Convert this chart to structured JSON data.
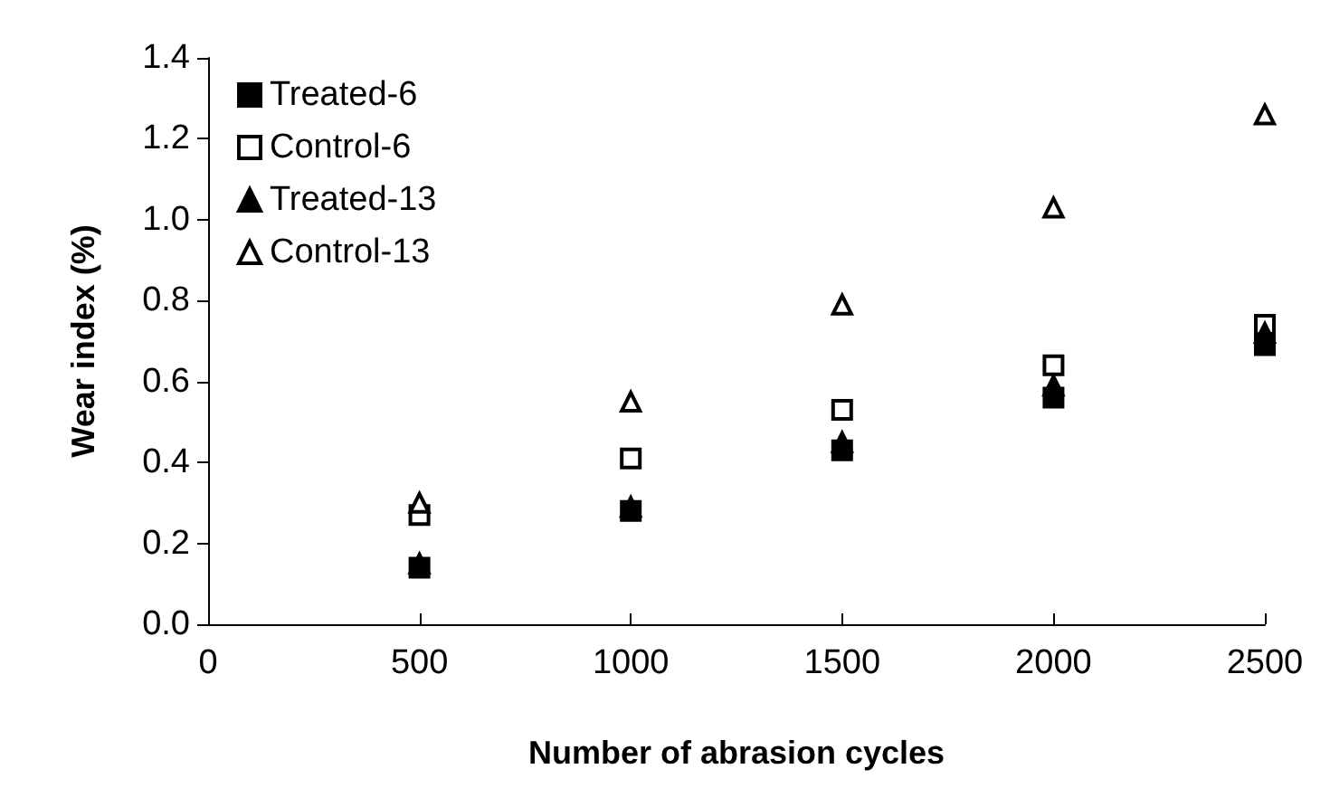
{
  "chart_data": {
    "type": "scatter",
    "xlabel": "Number of abrasion cycles",
    "ylabel": "Wear index (%)",
    "x": [
      500,
      1000,
      1500,
      2000,
      2500
    ],
    "series": [
      {
        "name": "Treated-6",
        "color": "#000000",
        "marker": "square",
        "values": [
          0.14,
          0.28,
          0.43,
          0.56,
          0.69
        ]
      },
      {
        "name": "Control-6",
        "color": "#ffffff",
        "marker": "square",
        "values": [
          0.27,
          0.41,
          0.53,
          0.64,
          0.74
        ]
      },
      {
        "name": "Treated-13",
        "color": "#000000",
        "marker": "triangle",
        "values": [
          0.15,
          0.29,
          0.45,
          0.59,
          0.72
        ]
      },
      {
        "name": "Control-13",
        "color": "#ffffff",
        "marker": "triangle",
        "values": [
          0.3,
          0.55,
          0.79,
          1.03,
          1.26
        ]
      }
    ],
    "xlim": [
      0,
      2500
    ],
    "xticks": [
      0,
      500,
      1000,
      1500,
      2000,
      2500
    ],
    "ylim": [
      0,
      1.4
    ],
    "yticks": [
      {
        "value": 0,
        "label": "0.0"
      },
      0.2,
      0.4,
      0.6,
      0.8,
      {
        "value": 1,
        "label": "1.0"
      },
      1.2,
      1.4
    ],
    "grid": false,
    "legend": "top left"
  }
}
